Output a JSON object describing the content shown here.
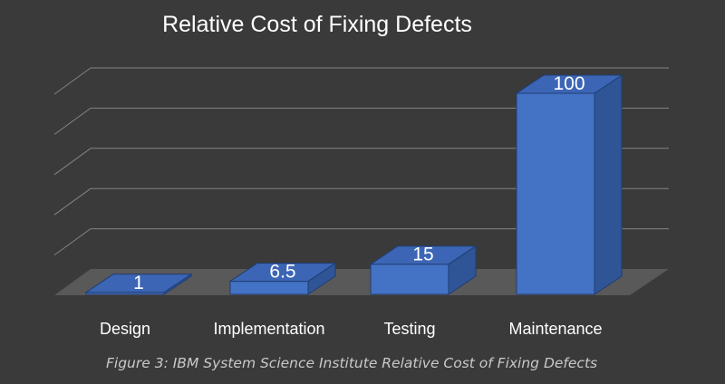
{
  "chart_data": {
    "type": "bar",
    "title": "Relative Cost of Fixing Defects",
    "categories": [
      "Design",
      "Implementation",
      "Testing",
      "Maintenance"
    ],
    "values": [
      1,
      6.5,
      15,
      100
    ],
    "data_labels": [
      "1",
      "6.5",
      "15",
      "100"
    ],
    "xlabel": "",
    "ylabel": "",
    "ylim": [
      0,
      100
    ],
    "grid": true,
    "style": "3d-column",
    "bar_color": "#4472c4"
  },
  "caption": {
    "prefix": "Figure 3:",
    "text": " IBM System Science Institute Relative Cost of Fixing Defects"
  },
  "colors": {
    "background": "#3a3a3a",
    "bar_front": "#4472c4",
    "bar_side": "#2f5597",
    "bar_top": "#3c66b5",
    "gridline": "#bfbfbf",
    "floor": "#595959"
  }
}
